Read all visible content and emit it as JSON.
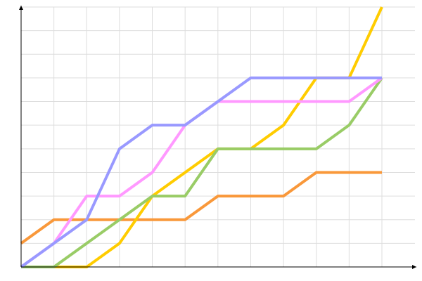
{
  "chart_data": {
    "type": "line",
    "categories": [
      null,
      null,
      null,
      null,
      null,
      null,
      null,
      null,
      null,
      null,
      null,
      null
    ],
    "series": [
      {
        "color": "#f9983a",
        "values": [
          1,
          2,
          2,
          2,
          2,
          2,
          3,
          3,
          3,
          4,
          4,
          4
        ]
      },
      {
        "color": "#ffcc00",
        "values": [
          0,
          0,
          0,
          1,
          3,
          4,
          5,
          5,
          6,
          8,
          8,
          11
        ]
      },
      {
        "color": "#99cc66",
        "values": [
          0,
          0,
          1,
          2,
          3,
          3,
          5,
          5,
          5,
          5,
          6,
          8
        ]
      },
      {
        "color": "#ff99ff",
        "values": [
          0,
          1,
          3,
          3,
          4,
          6,
          7,
          7,
          7,
          7,
          7,
          8
        ]
      },
      {
        "color": "#9999ff",
        "values": [
          0,
          1,
          2,
          5,
          6,
          6,
          7,
          8,
          8,
          8,
          8,
          8
        ]
      }
    ],
    "ylim": [
      0,
      11
    ],
    "yticks": [
      0,
      1,
      2,
      3,
      4,
      5,
      6,
      7,
      8,
      9,
      10,
      11
    ],
    "grid": true
  }
}
